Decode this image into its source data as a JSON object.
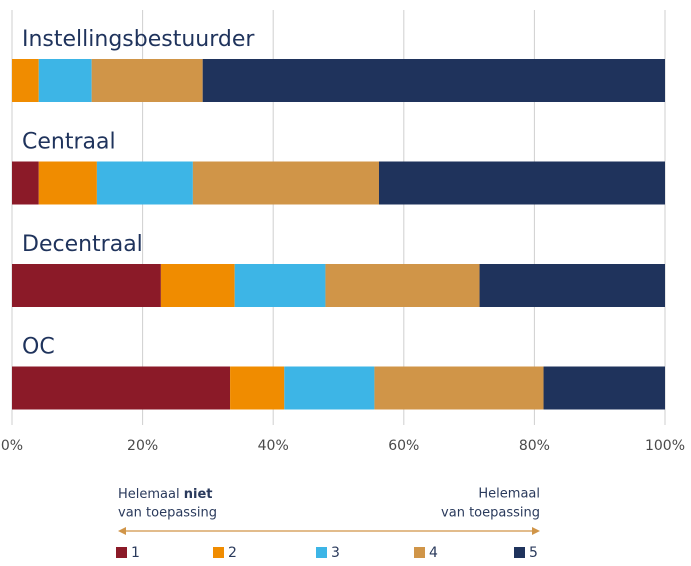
{
  "chart_data": {
    "type": "bar",
    "orientation": "horizontal",
    "stacked": true,
    "categories": [
      "Instellingsbestuurder",
      "Centraal",
      "Decentraal",
      "OC"
    ],
    "series": [
      {
        "name": "1",
        "color": "#8b1a28",
        "values": [
          0,
          4.1,
          22.8,
          33.4
        ]
      },
      {
        "name": "2",
        "color": "#f08c00",
        "values": [
          4.1,
          8.9,
          11.3,
          8.3
        ]
      },
      {
        "name": "3",
        "color": "#3db5e6",
        "values": [
          8.1,
          14.7,
          13.9,
          13.8
        ]
      },
      {
        "name": "4",
        "color": "#d09548",
        "values": [
          17.0,
          28.5,
          23.6,
          25.9
        ]
      },
      {
        "name": "5",
        "color": "#1f335c",
        "values": [
          70.8,
          43.8,
          28.4,
          18.6
        ]
      }
    ],
    "xlim": [
      0,
      100
    ],
    "xticks": [
      {
        "value": 0,
        "label": "0%"
      },
      {
        "value": 20,
        "label": "20%"
      },
      {
        "value": 40,
        "label": "40%"
      },
      {
        "value": 60,
        "label": "60%"
      },
      {
        "value": 80,
        "label": "80%"
      },
      {
        "value": 100,
        "label": "100%"
      }
    ],
    "grid": true,
    "legend": "bottom",
    "annotations": {
      "left": {
        "line1": "Helemaal",
        "line1_bold": "niet",
        "line2": "van toepassing"
      },
      "right": {
        "line1": "Helemaal",
        "line2": "van toepassing"
      }
    }
  }
}
